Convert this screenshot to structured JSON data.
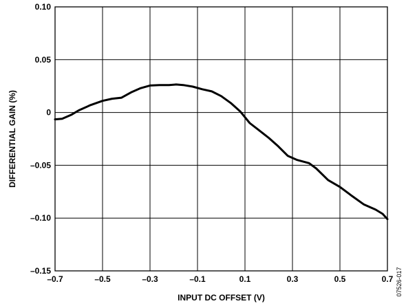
{
  "chart_data": {
    "type": "line",
    "title": "",
    "xlabel": "INPUT DC OFFSET (V)",
    "ylabel": "DIFFERENTIAL GAIN (%)",
    "xlim": [
      -0.7,
      0.7
    ],
    "ylim": [
      -0.15,
      0.1
    ],
    "x_ticks": [
      -0.7,
      -0.5,
      -0.3,
      -0.1,
      0.1,
      0.3,
      0.5,
      0.7
    ],
    "x_tick_labels": [
      "–0.7",
      "–0.5",
      "–0.3",
      "–0.1",
      "0.1",
      "0.3",
      "0.5",
      "0.7"
    ],
    "y_ticks": [
      0.1,
      0.05,
      0,
      -0.05,
      -0.1,
      -0.15
    ],
    "y_tick_labels": [
      "0.10",
      "0.05",
      "0",
      "–0.05",
      "–0.10",
      "–0.15"
    ],
    "grid": true,
    "series": [
      {
        "x": [
          -0.7,
          -0.67,
          -0.63,
          -0.6,
          -0.55,
          -0.5,
          -0.46,
          -0.42,
          -0.38,
          -0.34,
          -0.3,
          -0.26,
          -0.22,
          -0.19,
          -0.16,
          -0.12,
          -0.08,
          -0.04,
          0.0,
          0.04,
          0.08,
          0.12,
          0.16,
          0.2,
          0.24,
          0.28,
          0.32,
          0.37,
          0.4,
          0.45,
          0.5,
          0.55,
          0.6,
          0.65,
          0.68,
          0.7
        ],
        "y": [
          -0.0065,
          -0.006,
          -0.002,
          0.002,
          0.007,
          0.011,
          0.013,
          0.014,
          0.019,
          0.023,
          0.0255,
          0.026,
          0.026,
          0.0265,
          0.026,
          0.0245,
          0.022,
          0.02,
          0.0155,
          0.009,
          0.001,
          -0.01,
          -0.017,
          -0.024,
          -0.032,
          -0.041,
          -0.045,
          -0.048,
          -0.053,
          -0.064,
          -0.0705,
          -0.079,
          -0.087,
          -0.092,
          -0.096,
          -0.101
        ]
      }
    ],
    "figure_id": "07526-017"
  }
}
